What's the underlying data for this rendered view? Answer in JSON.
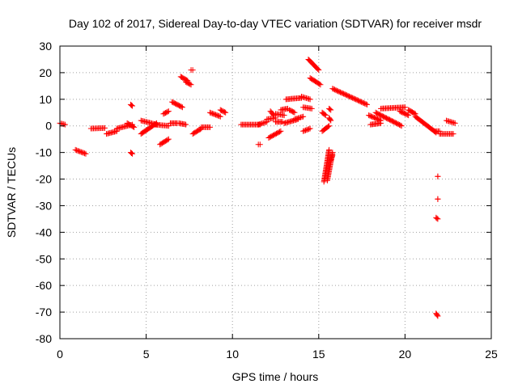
{
  "chart_data": {
    "type": "scatter",
    "title": "Day 102 of 2017, Sidereal Day-to-day VTEC variation (SDTVAR) for receiver msdr",
    "xlabel": "GPS time / hours",
    "ylabel": "SDTVAR / TECUs",
    "xlim": [
      0,
      25
    ],
    "ylim": [
      -80,
      30
    ],
    "xticks": [
      0,
      5,
      10,
      15,
      20,
      25
    ],
    "yticks": [
      -80,
      -70,
      -60,
      -50,
      -40,
      -30,
      -20,
      -10,
      0,
      10,
      20,
      30
    ],
    "grid": true,
    "marker": "plus",
    "color": "#ff0000",
    "segments": [
      {
        "x": [
          0.0,
          0.3
        ],
        "y": [
          1.0,
          0.5
        ]
      },
      {
        "x": [
          0.9,
          1.5
        ],
        "y": [
          -9.0,
          -10.5
        ]
      },
      {
        "x": [
          1.8,
          2.6
        ],
        "y": [
          -1.0,
          -0.8
        ]
      },
      {
        "x": [
          2.7,
          3.3
        ],
        "y": [
          -3.0,
          -2.0
        ]
      },
      {
        "x": [
          3.3,
          4.2
        ],
        "y": [
          -1.0,
          0.5
        ]
      },
      {
        "x": [
          3.9,
          4.3
        ],
        "y": [
          1.0,
          -0.5
        ]
      },
      {
        "x": [
          4.1,
          4.2
        ],
        "y": [
          8.0,
          7.5
        ]
      },
      {
        "x": [
          4.1,
          4.2
        ],
        "y": [
          -10.0,
          -10.5
        ]
      },
      {
        "x": [
          4.7,
          5.6
        ],
        "y": [
          -3.0,
          1.0
        ]
      },
      {
        "x": [
          4.7,
          5.6
        ],
        "y": [
          2.0,
          0.5
        ]
      },
      {
        "x": [
          5.5,
          6.3
        ],
        "y": [
          0.5,
          0.0
        ]
      },
      {
        "x": [
          5.8,
          6.3
        ],
        "y": [
          -7.0,
          -5.0
        ]
      },
      {
        "x": [
          6.0,
          6.3
        ],
        "y": [
          4.5,
          5.5
        ]
      },
      {
        "x": [
          6.4,
          6.8
        ],
        "y": [
          1.0,
          1.0
        ]
      },
      {
        "x": [
          6.5,
          7.1
        ],
        "y": [
          9.0,
          7.0
        ]
      },
      {
        "x": [
          6.9,
          7.3
        ],
        "y": [
          1.0,
          0.5
        ]
      },
      {
        "x": [
          7.0,
          7.4
        ],
        "y": [
          18.5,
          17.0
        ]
      },
      {
        "x": [
          7.3,
          7.6
        ],
        "y": [
          16.5,
          15.5
        ]
      },
      {
        "x": [
          7.6,
          7.7
        ],
        "y": [
          21.0,
          21.0
        ]
      },
      {
        "x": [
          7.7,
          8.2
        ],
        "y": [
          -3.0,
          -1.0
        ]
      },
      {
        "x": [
          8.2,
          8.7
        ],
        "y": [
          -0.5,
          -0.5
        ]
      },
      {
        "x": [
          8.7,
          9.3
        ],
        "y": [
          5.0,
          3.5
        ]
      },
      {
        "x": [
          9.3,
          9.6
        ],
        "y": [
          6.0,
          5.0
        ]
      },
      {
        "x": [
          10.5,
          11.6
        ],
        "y": [
          0.5,
          0.5
        ]
      },
      {
        "x": [
          11.5,
          12.0
        ],
        "y": [
          0.5,
          1.5
        ]
      },
      {
        "x": [
          11.5,
          11.6
        ],
        "y": [
          -7.0,
          -7.0
        ]
      },
      {
        "x": [
          12.0,
          12.5
        ],
        "y": [
          2.5,
          3.0
        ]
      },
      {
        "x": [
          12.1,
          12.8
        ],
        "y": [
          -4.5,
          -2.0
        ]
      },
      {
        "x": [
          12.2,
          12.4
        ],
        "y": [
          5.5,
          4.0
        ]
      },
      {
        "x": [
          12.5,
          13.0
        ],
        "y": [
          4.5,
          4.0
        ]
      },
      {
        "x": [
          12.5,
          12.9
        ],
        "y": [
          1.5,
          1.5
        ]
      },
      {
        "x": [
          12.8,
          13.2
        ],
        "y": [
          6.0,
          6.5
        ]
      },
      {
        "x": [
          13.0,
          13.8
        ],
        "y": [
          1.0,
          2.5
        ]
      },
      {
        "x": [
          13.1,
          14.0
        ],
        "y": [
          10.0,
          10.5
        ]
      },
      {
        "x": [
          13.3,
          13.6
        ],
        "y": [
          6.0,
          5.0
        ]
      },
      {
        "x": [
          13.6,
          14.1
        ],
        "y": [
          2.5,
          3.5
        ]
      },
      {
        "x": [
          14.0,
          14.5
        ],
        "y": [
          11.0,
          10.0
        ]
      },
      {
        "x": [
          14.1,
          14.5
        ],
        "y": [
          -2.0,
          -1.0
        ]
      },
      {
        "x": [
          14.1,
          14.6
        ],
        "y": [
          7.0,
          6.5
        ]
      },
      {
        "x": [
          14.4,
          15.0
        ],
        "y": [
          25.0,
          21.0
        ]
      },
      {
        "x": [
          14.5,
          15.1
        ],
        "y": [
          18.0,
          15.5
        ]
      },
      {
        "x": [
          15.2,
          15.4
        ],
        "y": [
          5.0,
          4.0
        ]
      },
      {
        "x": [
          15.2,
          15.6
        ],
        "y": [
          -2.0,
          0.0
        ]
      },
      {
        "x": [
          15.3,
          15.6
        ],
        "y": [
          -21.0,
          -9.0
        ]
      },
      {
        "x": [
          15.5,
          15.8
        ],
        "y": [
          -20.5,
          -10.0
        ]
      },
      {
        "x": [
          15.6,
          15.7
        ],
        "y": [
          3.0,
          2.0
        ]
      },
      {
        "x": [
          15.6,
          15.7
        ],
        "y": [
          6.5,
          6.0
        ]
      },
      {
        "x": [
          15.7,
          15.8
        ],
        "y": [
          -13.0,
          -11.0
        ]
      },
      {
        "x": [
          15.8,
          17.8
        ],
        "y": [
          14.0,
          8.0
        ]
      },
      {
        "x": [
          17.9,
          18.6
        ],
        "y": [
          4.0,
          2.0
        ]
      },
      {
        "x": [
          18.0,
          18.6
        ],
        "y": [
          0.5,
          1.0
        ]
      },
      {
        "x": [
          18.3,
          19.8
        ],
        "y": [
          5.0,
          0.0
        ]
      },
      {
        "x": [
          18.6,
          20.0
        ],
        "y": [
          6.5,
          7.0
        ]
      },
      {
        "x": [
          19.7,
          20.2
        ],
        "y": [
          5.5,
          4.0
        ]
      },
      {
        "x": [
          20.2,
          20.6
        ],
        "y": [
          6.0,
          4.5
        ]
      },
      {
        "x": [
          20.6,
          21.8
        ],
        "y": [
          3.5,
          -2.5
        ]
      },
      {
        "x": [
          21.7,
          22.0
        ],
        "y": [
          -2.0,
          -2.0
        ]
      },
      {
        "x": [
          22.0,
          22.8
        ],
        "y": [
          -3.0,
          -3.0
        ]
      },
      {
        "x": [
          22.4,
          22.9
        ],
        "y": [
          2.0,
          1.0
        ]
      },
      {
        "x": [
          21.9,
          21.9
        ],
        "y": [
          -19.0,
          -19.0
        ]
      },
      {
        "x": [
          21.9,
          21.9
        ],
        "y": [
          -27.5,
          -27.5
        ]
      },
      {
        "x": [
          21.8,
          21.9
        ],
        "y": [
          -34.5,
          -35.0
        ]
      },
      {
        "x": [
          21.8,
          21.9
        ],
        "y": [
          -70.5,
          -71.5
        ]
      }
    ]
  }
}
